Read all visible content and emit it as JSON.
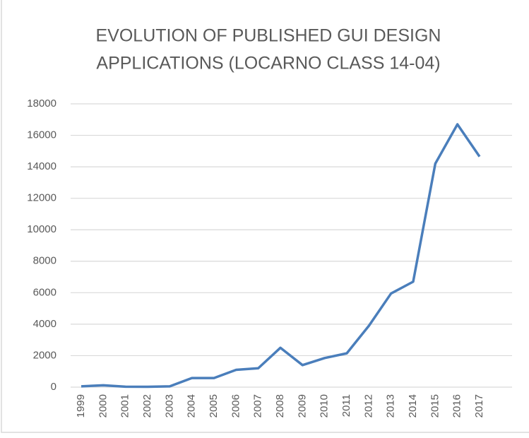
{
  "chart_data": {
    "type": "line",
    "title": [
      "EVOLUTION OF PUBLISHED GUI DESIGN",
      "APPLICATIONS (LOCARNO CLASS 14-04)"
    ],
    "categories": [
      "1999",
      "2000",
      "2001",
      "2002",
      "2003",
      "2004",
      "2005",
      "2006",
      "2007",
      "2008",
      "2009",
      "2010",
      "2011",
      "2012",
      "2013",
      "2014",
      "2015",
      "2016",
      "2017"
    ],
    "series": [
      {
        "color": "#4a7ebb",
        "values": [
          50,
          120,
          30,
          20,
          50,
          580,
          580,
          1100,
          1200,
          2500,
          1400,
          1850,
          2150,
          3900,
          5950,
          6700,
          14200,
          16700,
          14650
        ]
      }
    ],
    "ylim": [
      0,
      18000
    ],
    "yticks": [
      0,
      2000,
      4000,
      6000,
      8000,
      10000,
      12000,
      14000,
      16000,
      18000
    ],
    "grid": true
  }
}
